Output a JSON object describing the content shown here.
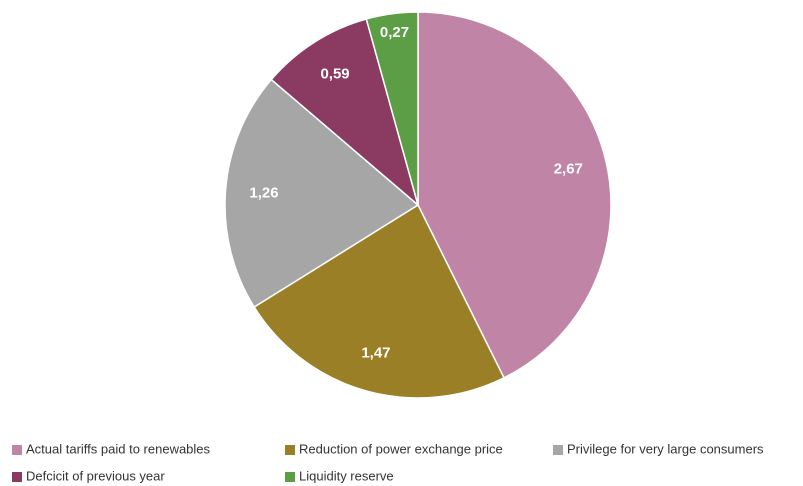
{
  "chart_data": {
    "type": "pie",
    "categories": [
      "Actual tariffs paid to renewables",
      "Reduction of power exchange price",
      "Privilege for very large consumers",
      "Defcicit of previous year",
      "Liquidity reserve"
    ],
    "values": [
      2.67,
      1.47,
      1.26,
      0.59,
      0.27
    ],
    "value_labels": [
      "2,67",
      "1,47",
      "1,26",
      "0,59",
      "0,27"
    ],
    "colors": [
      "#c084a6",
      "#9a7f26",
      "#a6a6a6",
      "#8b3a62",
      "#5c9e45"
    ],
    "legend": "bottom"
  }
}
